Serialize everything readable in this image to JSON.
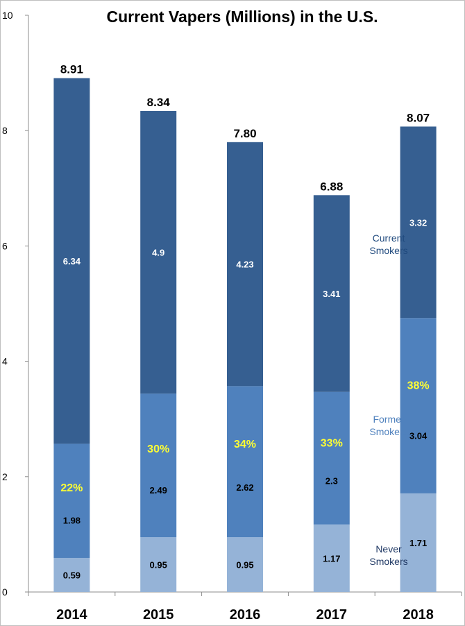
{
  "chart_data": {
    "type": "bar",
    "stacked": true,
    "title": "Current Vapers (Millions) in the U.S.",
    "categories": [
      "2014",
      "2015",
      "2016",
      "2017",
      "2018"
    ],
    "ylim": [
      0,
      10
    ],
    "yticks": [
      0,
      2,
      4,
      6,
      8,
      10
    ],
    "series": [
      {
        "name": "Never Smokers",
        "values": [
          0.59,
          0.95,
          0.95,
          1.17,
          1.71
        ],
        "labels": [
          "0.59",
          "0.95",
          "0.95",
          "1.17",
          "1.71"
        ],
        "color": "#95b3d7",
        "label_color": "#000000"
      },
      {
        "name": "Former Smokers",
        "values": [
          1.98,
          2.49,
          2.62,
          2.3,
          3.04
        ],
        "labels": [
          "1.98",
          "2.49",
          "2.62",
          "2.3",
          "3.04"
        ],
        "color": "#4f81bd",
        "label_color": "#000000"
      },
      {
        "name": "Current Smokers",
        "values": [
          6.34,
          4.9,
          4.23,
          3.41,
          3.32
        ],
        "labels": [
          "6.34",
          "4.9",
          "4.23",
          "3.41",
          "3.32"
        ],
        "color": "#365f91",
        "label_color": "#ffffff"
      }
    ],
    "totals": [
      "8.91",
      "8.34",
      "7.80",
      "6.88",
      "8.07"
    ],
    "former_share_labels": [
      "22%",
      "30%",
      "34%",
      "33%",
      "38%"
    ],
    "former_share_color": "#ffff33",
    "legend": {
      "placement": "inside-right",
      "entries": [
        {
          "line1": "Current",
          "line2": "Smokers",
          "color": "#1f497d"
        },
        {
          "line1": "Former",
          "line2": "Smokers",
          "color": "#4f81bd"
        },
        {
          "line1": "Never",
          "line2": "Smokers",
          "color": "#1f3864"
        }
      ]
    },
    "grid": false,
    "axis_color": "#8c8c8c"
  }
}
